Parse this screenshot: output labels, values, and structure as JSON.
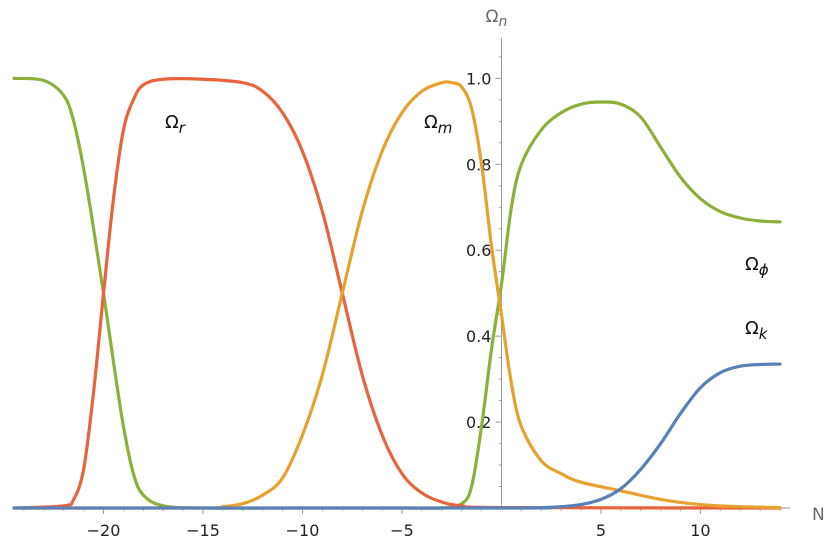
{
  "chart_data": {
    "type": "line",
    "title": "",
    "xlabel": "N",
    "ylabel": "Ω",
    "ylabel_sub": "n",
    "xlim": [
      -24.5,
      14
    ],
    "ylim": [
      0,
      1.08
    ],
    "x_ticks": [
      -20,
      -15,
      -10,
      -5,
      5,
      10
    ],
    "x_tick_labels": [
      "−20",
      "−15",
      "−10",
      "−5",
      "5",
      "10"
    ],
    "y_ticks": [
      0.2,
      0.4,
      0.6,
      0.8,
      1.0
    ],
    "y_tick_labels": [
      "0.2",
      "0.4",
      "0.6",
      "0.8",
      "1.0"
    ],
    "grid": false,
    "colors": {
      "r": "#e8643c",
      "m": "#e6a12e",
      "phi": "#8db03a",
      "k": "#5a80b8",
      "axis": "#9a9a9a"
    },
    "series": [
      {
        "key": "phi",
        "name": "Ωϕ",
        "label_main": "Ω",
        "label_sub": "ϕ",
        "color": "#8db03a",
        "x": [
          -24.5,
          -23,
          -22,
          -21.5,
          -21,
          -20.5,
          -20,
          -19.5,
          -19,
          -18.5,
          -18,
          -17,
          -15,
          -10,
          -5,
          -3,
          -2,
          -1.5,
          -1,
          -0.5,
          0,
          0.5,
          1,
          2,
          3,
          4,
          5,
          6,
          7,
          8,
          9,
          10,
          11,
          12,
          13,
          14
        ],
        "y": [
          1.0,
          0.995,
          0.96,
          0.9,
          0.79,
          0.65,
          0.5,
          0.34,
          0.19,
          0.08,
          0.03,
          0.005,
          0,
          0,
          0,
          0,
          0.01,
          0.05,
          0.19,
          0.37,
          0.52,
          0.7,
          0.8,
          0.88,
          0.92,
          0.94,
          0.945,
          0.94,
          0.91,
          0.84,
          0.77,
          0.72,
          0.69,
          0.675,
          0.668,
          0.666
        ]
      },
      {
        "key": "r",
        "name": "Ωr",
        "label_main": "Ω",
        "label_sub": "r",
        "color": "#e8643c",
        "x": [
          -24.5,
          -22,
          -21.5,
          -21,
          -20.5,
          -20,
          -19.5,
          -19,
          -18.5,
          -18,
          -17,
          -15,
          -13,
          -12,
          -11,
          -10,
          -9,
          -8,
          -7,
          -6,
          -5,
          -4,
          -3,
          -2,
          0,
          14
        ],
        "y": [
          0,
          0.005,
          0.02,
          0.09,
          0.27,
          0.5,
          0.72,
          0.88,
          0.95,
          0.985,
          0.998,
          0.998,
          0.99,
          0.97,
          0.92,
          0.83,
          0.69,
          0.5,
          0.31,
          0.17,
          0.08,
          0.035,
          0.014,
          0.005,
          0.001,
          0
        ]
      },
      {
        "key": "m",
        "name": "Ωm",
        "label_main": "Ω",
        "label_sub": "m",
        "color": "#e6a12e",
        "x": [
          -24.5,
          -15,
          -14,
          -13,
          -12,
          -11,
          -10,
          -9,
          -8,
          -7,
          -6,
          -5,
          -4,
          -3,
          -2.5,
          -2,
          -1.5,
          -1,
          -0.5,
          0,
          0.5,
          1,
          2,
          3,
          4,
          6,
          8,
          10,
          12,
          14
        ],
        "y": [
          0,
          0,
          0.003,
          0.01,
          0.03,
          0.07,
          0.17,
          0.31,
          0.5,
          0.69,
          0.83,
          0.92,
          0.97,
          0.99,
          0.99,
          0.98,
          0.93,
          0.8,
          0.61,
          0.45,
          0.29,
          0.19,
          0.11,
          0.08,
          0.06,
          0.04,
          0.02,
          0.008,
          0.003,
          0.001
        ]
      },
      {
        "key": "k",
        "name": "Ωk",
        "label_main": "Ω",
        "label_sub": "k",
        "color": "#5a80b8",
        "x": [
          -24.5,
          0,
          2,
          3,
          4,
          5,
          6,
          7,
          8,
          9,
          10,
          11,
          12,
          13,
          14
        ],
        "y": [
          0,
          0,
          0.001,
          0.003,
          0.008,
          0.02,
          0.045,
          0.09,
          0.15,
          0.22,
          0.28,
          0.315,
          0.33,
          0.334,
          0.335
        ]
      }
    ]
  }
}
